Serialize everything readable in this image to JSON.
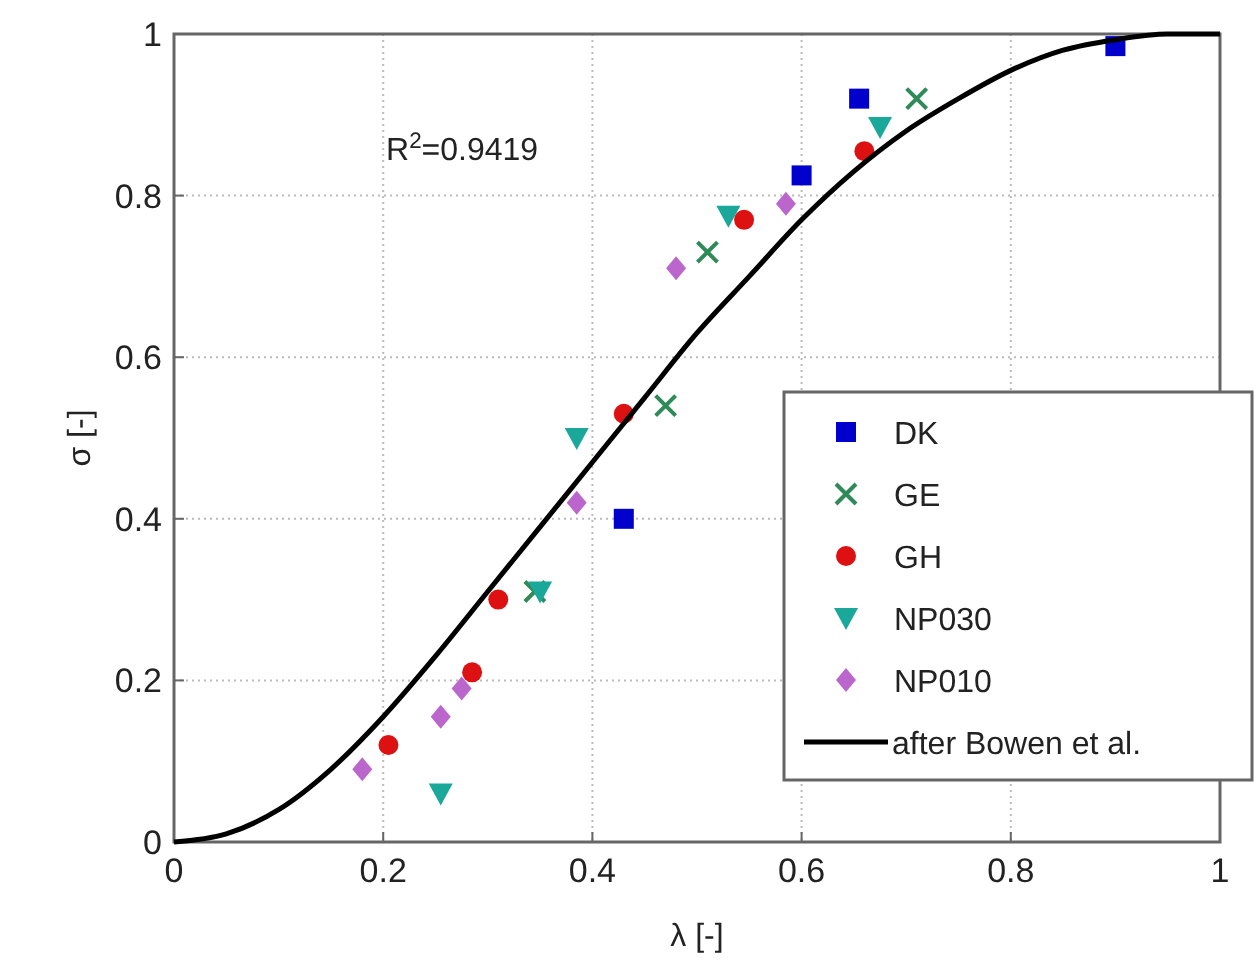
{
  "chart_data": {
    "type": "scatter",
    "xlabel": "λ [-]",
    "ylabel": "σ [-]",
    "xlim": [
      0,
      1
    ],
    "ylim": [
      0,
      1
    ],
    "xticks": [
      0,
      0.2,
      0.4,
      0.6,
      0.8,
      1
    ],
    "yticks": [
      0,
      0.2,
      0.4,
      0.6,
      0.8,
      1
    ],
    "grid": true,
    "legend": "right",
    "annotations": [
      "R$^{2}$=0.9419"
    ],
    "series": [
      {
        "name": "DK",
        "color": "#0000cc",
        "marker": "square",
        "x": [
          0.43,
          0.6,
          0.655,
          0.9
        ],
        "values": [
          0.4,
          0.825,
          0.92,
          0.985
        ]
      },
      {
        "name": "GE",
        "color": "#2e8b57",
        "marker": "cross",
        "x": [
          0.345,
          0.47,
          0.51,
          0.71
        ],
        "values": [
          0.31,
          0.54,
          0.73,
          0.92
        ]
      },
      {
        "name": "GH",
        "color": "#dd1111",
        "marker": "circle",
        "x": [
          0.205,
          0.285,
          0.31,
          0.43,
          0.545,
          0.66
        ],
        "values": [
          0.12,
          0.21,
          0.3,
          0.53,
          0.77,
          0.855
        ]
      },
      {
        "name": "NP030",
        "color": "#1aa89a",
        "marker": "triangle",
        "x": [
          0.255,
          0.35,
          0.385,
          0.53,
          0.675
        ],
        "values": [
          0.06,
          0.31,
          0.5,
          0.775,
          0.885
        ]
      },
      {
        "name": "NP010",
        "color": "#bb66cc",
        "marker": "diamond",
        "x": [
          0.18,
          0.255,
          0.275,
          0.385,
          0.48,
          0.585
        ],
        "values": [
          0.09,
          0.155,
          0.19,
          0.42,
          0.71,
          0.79
        ]
      },
      {
        "name": "after Bowen et al.",
        "type": "line",
        "color": "#000000",
        "marker": "none",
        "line_style": "solid",
        "x": [
          0,
          0.05,
          0.1,
          0.15,
          0.2,
          0.25,
          0.3,
          0.35,
          0.4,
          0.45,
          0.5,
          0.55,
          0.6,
          0.65,
          0.7,
          0.75,
          0.8,
          0.85,
          0.9,
          0.95,
          1
        ],
        "values": [
          0,
          0.01,
          0.04,
          0.09,
          0.155,
          0.23,
          0.31,
          0.39,
          0.47,
          0.55,
          0.63,
          0.7,
          0.77,
          0.83,
          0.88,
          0.92,
          0.955,
          0.98,
          0.993,
          1,
          1
        ]
      }
    ]
  }
}
